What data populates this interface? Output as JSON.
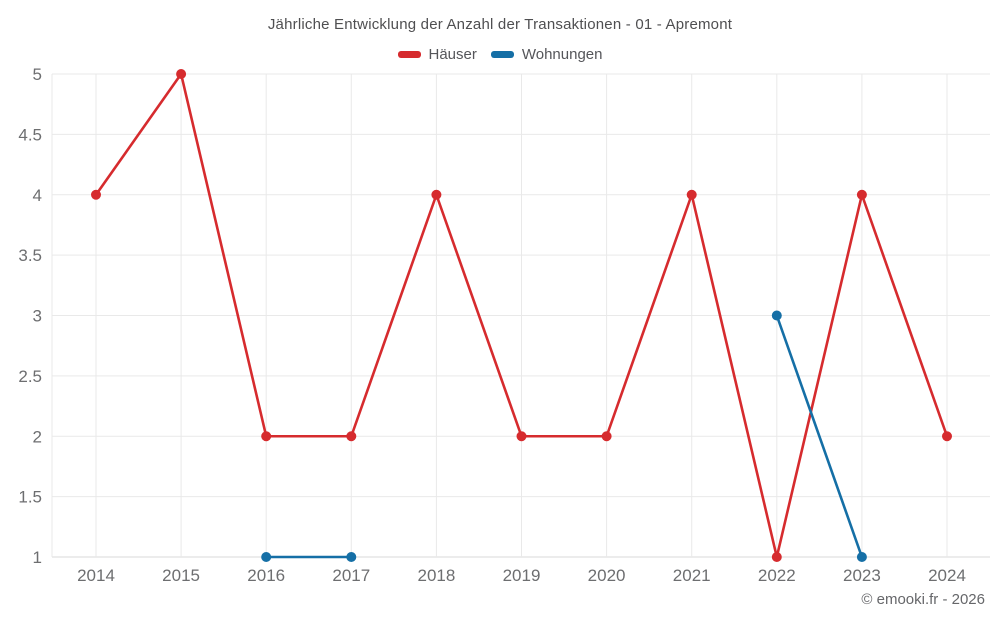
{
  "header": {
    "title": "Jährliche Entwicklung der Anzahl der Transaktionen - 01 - Apremont"
  },
  "footer": {
    "credit": "© emooki.fr - 2026"
  },
  "chart_data": {
    "type": "line",
    "title": "Jährliche Entwicklung der Anzahl der Transaktionen - 01 - Apremont",
    "categories": [
      2014,
      2015,
      2016,
      2017,
      2018,
      2019,
      2020,
      2021,
      2022,
      2023,
      2024
    ],
    "series": [
      {
        "id": "haeuser",
        "name": "Häuser",
        "color": "#d62b2e",
        "values": [
          4,
          5,
          2,
          2,
          4,
          2,
          2,
          4,
          1,
          4,
          2
        ]
      },
      {
        "id": "wohnungen",
        "name": "Wohnungen",
        "color": "#156fa6",
        "values": [
          null,
          null,
          1,
          1,
          null,
          null,
          null,
          null,
          3,
          1,
          null
        ]
      }
    ],
    "xlabel": "",
    "ylabel": "",
    "ylim": [
      1,
      5
    ],
    "ytick_step": 0.5,
    "grid": true,
    "legend_position": "top"
  }
}
